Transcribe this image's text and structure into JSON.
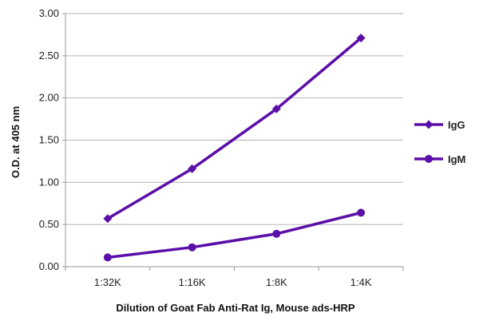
{
  "chart_data": {
    "type": "line",
    "categories": [
      "1:32K",
      "1:16K",
      "1:8K",
      "1:4K"
    ],
    "series": [
      {
        "name": "IgG",
        "values": [
          0.57,
          1.16,
          1.87,
          2.71
        ],
        "marker": "diamond",
        "color": "#5b0fa8"
      },
      {
        "name": "IgM",
        "values": [
          0.11,
          0.23,
          0.39,
          0.64
        ],
        "marker": "circle",
        "color": "#5b0fa8"
      }
    ],
    "xlabel": "Dilution of Goat Fab Anti-Rat Ig, Mouse ads-HRP",
    "ylabel": "O.D. at 405 nm",
    "ylim": [
      0,
      3
    ],
    "yticks": [
      "0.00",
      "0.50",
      "1.00",
      "1.50",
      "2.00",
      "2.50",
      "3.00"
    ],
    "grid": "horizontal",
    "legend_position": "right"
  }
}
